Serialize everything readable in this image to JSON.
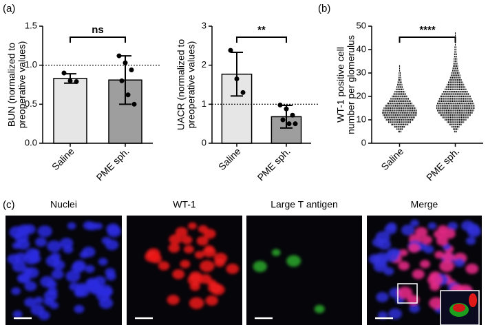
{
  "chart_data": [
    {
      "type": "bar",
      "ylabel": [
        "BUN (normalized to",
        "preoperative values)"
      ],
      "categories": [
        "Saline",
        "PME sph."
      ],
      "values": [
        0.83,
        0.81
      ],
      "errors": [
        0.06,
        0.31
      ],
      "points": [
        [
          0.9,
          0.8,
          0.79
        ],
        [
          1.12,
          1.03,
          0.94,
          0.8,
          0.62,
          0.5
        ]
      ],
      "colors": [
        "#e6e6e6",
        "#9e9e9e"
      ],
      "ref_line": 1,
      "annotation": "ns",
      "ylim": [
        0,
        1.5
      ],
      "yticks": [
        {
          "value": 0,
          "label": "0.0"
        },
        0.5,
        {
          "value": 1,
          "label": "1.0"
        },
        1.5
      ]
    },
    {
      "type": "bar",
      "ylabel": [
        "UACR (normalized to",
        "preoperative values)"
      ],
      "categories": [
        "Saline",
        "PME sph."
      ],
      "values": [
        1.77,
        0.68
      ],
      "errors": [
        0.56,
        0.29
      ],
      "points": [
        [
          2.38,
          1.65,
          1.3
        ],
        [
          0.98,
          0.88,
          0.72,
          0.6,
          0.5,
          0.5
        ]
      ],
      "colors": [
        "#e6e6e6",
        "#9e9e9e"
      ],
      "ref_line": 1,
      "annotation": "**",
      "ylim": [
        0,
        3
      ],
      "yticks": [
        0,
        1,
        2,
        3
      ]
    },
    {
      "type": "swarm",
      "ylabel": [
        "WT-1 positive cell",
        "number per glomerulus"
      ],
      "categories": [
        "Saline",
        "PME sph."
      ],
      "annotation": "****",
      "series": [
        {
          "levels": [
            5,
            6,
            7,
            8,
            9,
            10,
            11,
            12,
            13,
            14,
            15,
            16,
            17,
            18,
            19,
            20,
            21,
            22,
            23,
            24,
            25,
            26,
            27,
            28,
            29,
            30,
            31,
            32,
            33
          ],
          "counts": [
            4,
            8,
            14,
            22,
            30,
            36,
            40,
            44,
            46,
            45,
            42,
            38,
            33,
            28,
            24,
            20,
            16,
            13,
            10,
            8,
            6,
            5,
            4,
            3,
            2,
            2,
            1,
            1,
            1
          ]
        },
        {
          "levels": [
            5,
            6,
            7,
            8,
            9,
            10,
            11,
            12,
            13,
            14,
            15,
            16,
            17,
            18,
            19,
            20,
            21,
            22,
            23,
            24,
            25,
            26,
            27,
            28,
            29,
            30,
            31,
            32,
            33,
            34,
            35,
            36,
            37,
            38,
            39,
            40,
            41,
            42,
            43,
            44,
            45,
            46,
            47
          ],
          "counts": [
            3,
            6,
            10,
            16,
            22,
            28,
            34,
            40,
            45,
            48,
            50,
            50,
            48,
            46,
            43,
            40,
            36,
            32,
            28,
            25,
            22,
            19,
            16,
            14,
            12,
            10,
            8,
            7,
            6,
            5,
            4,
            4,
            3,
            3,
            2,
            2,
            2,
            1,
            1,
            1,
            1,
            1,
            1
          ]
        }
      ],
      "ylim": [
        0,
        50
      ],
      "yticks": [
        0,
        10,
        20,
        30,
        40,
        50
      ]
    }
  ],
  "panel_labels": [
    "(a)",
    "(b)",
    "(c)"
  ],
  "images": [
    {
      "title": "Nuclei"
    },
    {
      "title": "WT-1"
    },
    {
      "title": "Large T antigen"
    },
    {
      "title": "Merge"
    }
  ]
}
